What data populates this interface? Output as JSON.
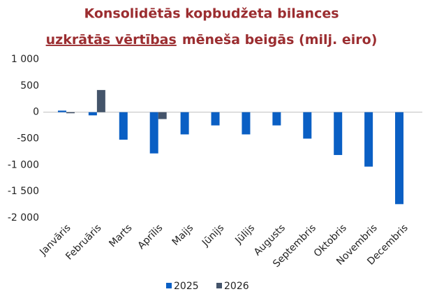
{
  "chart_data": {
    "type": "bar",
    "title": [
      "Konsolidētās kopbudžeta bilances",
      "uzkrātās vērtības",
      "mēneša beigās (milj. eiro)"
    ],
    "categories": [
      "Janvāris",
      "Februāris",
      "Marts",
      "Aprīlis",
      "Maijs",
      "Jūnijs",
      "Jūlijs",
      "Augusts",
      "Septembris",
      "Oktobris",
      "Novembris",
      "Decembris"
    ],
    "series": [
      {
        "name": "2025",
        "color": "#0a5fc4",
        "values": [
          30,
          -60,
          -520,
          -780,
          -420,
          -250,
          -420,
          -250,
          -500,
          -810,
          -1030,
          -1740
        ]
      },
      {
        "name": "2026",
        "color": "#44546a",
        "values": [
          -20,
          420,
          null,
          -130,
          null,
          null,
          null,
          null,
          null,
          null,
          null,
          null
        ]
      }
    ],
    "ylim": [
      -2000,
      1000
    ],
    "yticks": [
      {
        "value": 1000,
        "label": "1 000"
      },
      500,
      0,
      -500,
      {
        "value": -1000,
        "label": "-1 000"
      },
      {
        "value": -1500,
        "label": "-1 500"
      },
      {
        "value": -2000,
        "label": "-2 000"
      }
    ],
    "legend": "bottom"
  }
}
